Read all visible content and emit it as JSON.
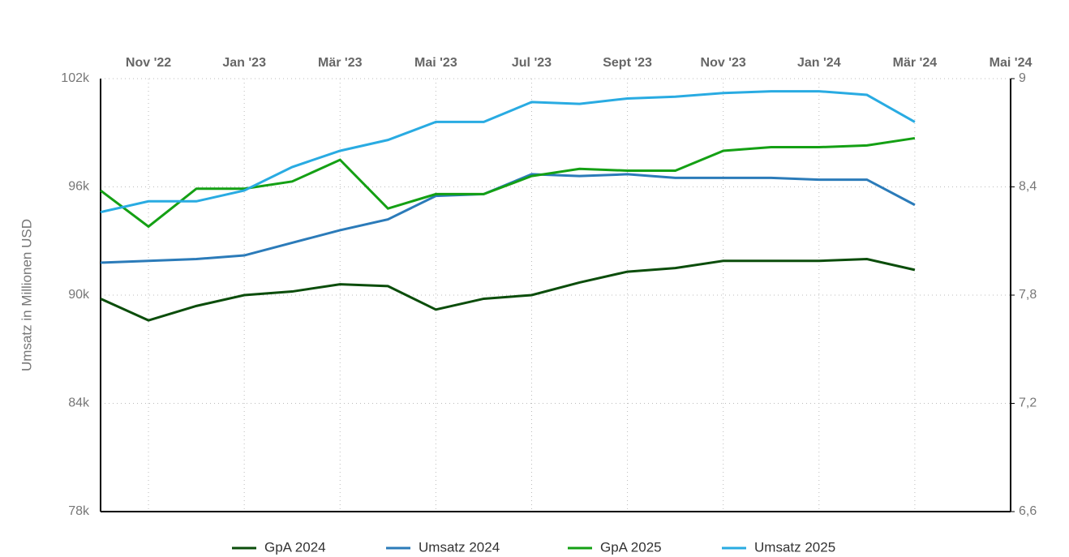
{
  "chart_data": {
    "type": "line",
    "y_label": "Umsatz in Millionen USD",
    "x": [
      "2022-10",
      "2022-11",
      "2022-12",
      "2023-01",
      "2023-02",
      "2023-03",
      "2023-04",
      "2023-05",
      "2023-06",
      "2023-07",
      "2023-08",
      "2023-09",
      "2023-10",
      "2023-11",
      "2023-12",
      "2024-01",
      "2024-02",
      "2024-03"
    ],
    "xlim": [
      "2022-10",
      "2024-05"
    ],
    "xticks": [
      {
        "value": "2022-11",
        "label": "Nov '22"
      },
      {
        "value": "2023-01",
        "label": "Jan '23"
      },
      {
        "value": "2023-03",
        "label": "Mär '23"
      },
      {
        "value": "2023-05",
        "label": "Mai '23"
      },
      {
        "value": "2023-07",
        "label": "Jul '23"
      },
      {
        "value": "2023-09",
        "label": "Sept '23"
      },
      {
        "value": "2023-11",
        "label": "Nov '23"
      },
      {
        "value": "2024-01",
        "label": "Jan '24"
      },
      {
        "value": "2024-03",
        "label": "Mär '24"
      },
      {
        "value": "2024-05",
        "label": "Mai '24"
      }
    ],
    "ylim": [
      78000,
      102000
    ],
    "yticks": [
      {
        "value": 78000,
        "label": "78k"
      },
      {
        "value": 84000,
        "label": "84k"
      },
      {
        "value": 90000,
        "label": "90k"
      },
      {
        "value": 96000,
        "label": "96k"
      },
      {
        "value": 102000,
        "label": "102k"
      }
    ],
    "y2lim": [
      6.6,
      9
    ],
    "y2ticks": [
      {
        "value": 6.6,
        "label": "6,6"
      },
      {
        "value": 7.2,
        "label": "7,2"
      },
      {
        "value": 7.8,
        "label": "7,8"
      },
      {
        "value": 8.4,
        "label": "8,4"
      },
      {
        "value": 9,
        "label": "9"
      }
    ],
    "grid": true,
    "legend": "bottom",
    "series": [
      {
        "name": "GpA 2024",
        "color": "#0b4d0b",
        "axis": "y2",
        "values": [
          7.78,
          7.66,
          7.74,
          7.8,
          7.82,
          7.86,
          7.85,
          7.72,
          7.78,
          7.8,
          7.87,
          7.93,
          7.95,
          7.99,
          7.99,
          7.99,
          8.0,
          7.94
        ]
      },
      {
        "name": "Umsatz 2024",
        "color": "#2b7bb9",
        "values": [
          91800,
          91900,
          92000,
          92200,
          92900,
          93600,
          94200,
          95500,
          95600,
          96700,
          96600,
          96700,
          96500,
          96500,
          96500,
          96400,
          96400,
          95000
        ]
      },
      {
        "name": "GpA 2025",
        "color": "#14a014",
        "axis": "y2",
        "values": [
          8.38,
          8.18,
          8.39,
          8.39,
          8.43,
          8.55,
          8.28,
          8.36,
          8.36,
          8.46,
          8.5,
          8.49,
          8.49,
          8.6,
          8.62,
          8.62,
          8.63,
          8.67
        ]
      },
      {
        "name": "Umsatz 2025",
        "color": "#29abe2",
        "values": [
          94600,
          95200,
          95200,
          95800,
          97100,
          98000,
          98600,
          99600,
          99600,
          100700,
          100600,
          100900,
          101000,
          101200,
          101300,
          101300,
          101100,
          99600
        ]
      }
    ]
  }
}
